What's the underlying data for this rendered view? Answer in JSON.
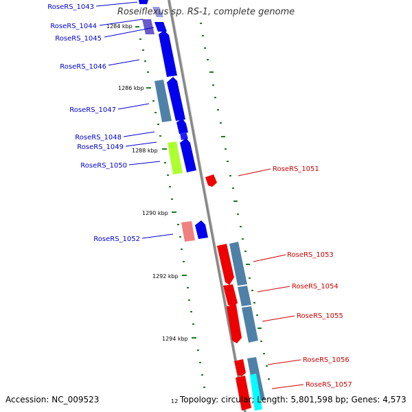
{
  "map": {
    "title": "Roseiflexus sp. RS-1, complete genome",
    "accession": "Accession: NC_009523",
    "stats": "Topology: circular; Length: 5,801,598 bp; Genes: 4,573",
    "partial_tick": "12"
  },
  "colors": {
    "backbone": "#888888",
    "tick": "#1a7a1a",
    "forward_label": "#0000cc",
    "reverse_label": "#cc0000",
    "gene_blue": "#0000ee",
    "gene_red": "#ee0000",
    "gene_steel": "#4f81a8",
    "gene_purple": "#6a5acd",
    "gene_lime": "#adff2f",
    "gene_pink": "#f08080",
    "gene_cyan": "#00ffff"
  },
  "kbp_ticks": [
    "1284 kbp",
    "1286 kbp",
    "1288 kbp",
    "1290 kbp",
    "1292 kbp",
    "1294 kbp"
  ],
  "gene_labels": [
    "RoseRS_1043",
    "RoseRS_1044",
    "RoseRS_1045",
    "RoseRS_1046",
    "RoseRS_1047",
    "RoseRS_1048",
    "RoseRS_1049",
    "RoseRS_1050",
    "RoseRS_1051",
    "RoseRS_1052",
    "RoseRS_1053",
    "RoseRS_1054",
    "RoseRS_1055",
    "RoseRS_1056",
    "RoseRS_1057"
  ]
}
